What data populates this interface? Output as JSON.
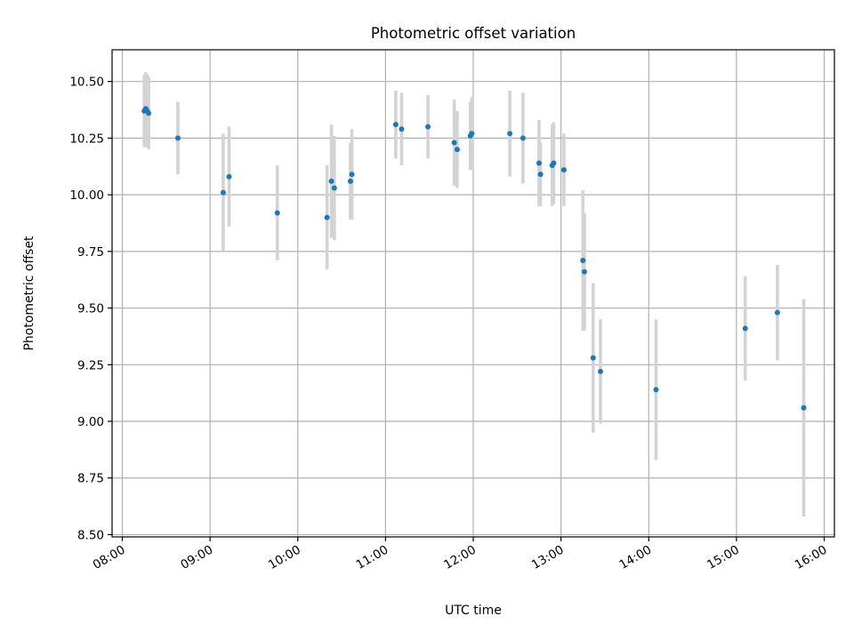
{
  "chart_data": {
    "type": "scatter",
    "title": "Photometric offset variation",
    "xlabel": "UTC time",
    "ylabel": "Photometric offset",
    "xlim": [
      "07:53",
      "16:07"
    ],
    "ylim": [
      8.49,
      10.64
    ],
    "grid": true,
    "x_ticks": [
      "08:00",
      "09:00",
      "10:00",
      "11:00",
      "12:00",
      "13:00",
      "14:00",
      "15:00",
      "16:00"
    ],
    "y_ticks": [
      "8.50",
      "8.75",
      "9.00",
      "9.25",
      "9.50",
      "9.75",
      "10.00",
      "10.25",
      "10.50"
    ],
    "colors": {
      "points": "#1f77b4",
      "error_bars": "#d3d3d3",
      "grid": "#b0b0b0"
    },
    "series": [
      {
        "points": [
          {
            "x": "08:15",
            "y": 10.37,
            "err": 0.16
          },
          {
            "x": "08:16",
            "y": 10.38,
            "err": 0.16
          },
          {
            "x": "08:17",
            "y": 10.37,
            "err": 0.16
          },
          {
            "x": "08:18",
            "y": 10.36,
            "err": 0.16
          },
          {
            "x": "08:38",
            "y": 10.25,
            "err": 0.16
          },
          {
            "x": "09:09",
            "y": 10.01,
            "err": 0.26
          },
          {
            "x": "09:13",
            "y": 10.08,
            "err": 0.22
          },
          {
            "x": "09:46",
            "y": 9.92,
            "err": 0.21
          },
          {
            "x": "10:20",
            "y": 9.9,
            "err": 0.23
          },
          {
            "x": "10:23",
            "y": 10.06,
            "err": 0.25
          },
          {
            "x": "10:25",
            "y": 10.03,
            "err": 0.23
          },
          {
            "x": "10:36",
            "y": 10.06,
            "err": 0.17
          },
          {
            "x": "10:37",
            "y": 10.09,
            "err": 0.2
          },
          {
            "x": "11:07",
            "y": 10.31,
            "err": 0.15
          },
          {
            "x": "11:11",
            "y": 10.29,
            "err": 0.16
          },
          {
            "x": "11:29",
            "y": 10.3,
            "err": 0.14
          },
          {
            "x": "11:47",
            "y": 10.23,
            "err": 0.19
          },
          {
            "x": "11:49",
            "y": 10.2,
            "err": 0.17
          },
          {
            "x": "11:58",
            "y": 10.26,
            "err": 0.15
          },
          {
            "x": "11:59",
            "y": 10.27,
            "err": 0.16
          },
          {
            "x": "12:25",
            "y": 10.27,
            "err": 0.19
          },
          {
            "x": "12:34",
            "y": 10.25,
            "err": 0.2
          },
          {
            "x": "12:45",
            "y": 10.14,
            "err": 0.19
          },
          {
            "x": "12:46",
            "y": 10.09,
            "err": 0.14
          },
          {
            "x": "12:54",
            "y": 10.13,
            "err": 0.18
          },
          {
            "x": "12:55",
            "y": 10.14,
            "err": 0.18
          },
          {
            "x": "13:02",
            "y": 10.11,
            "err": 0.16
          },
          {
            "x": "13:15",
            "y": 9.71,
            "err": 0.31
          },
          {
            "x": "13:16",
            "y": 9.66,
            "err": 0.26
          },
          {
            "x": "13:22",
            "y": 9.28,
            "err": 0.33
          },
          {
            "x": "13:27",
            "y": 9.22,
            "err": 0.23
          },
          {
            "x": "14:05",
            "y": 9.14,
            "err": 0.31
          },
          {
            "x": "15:06",
            "y": 9.41,
            "err": 0.23
          },
          {
            "x": "15:28",
            "y": 9.48,
            "err": 0.21
          },
          {
            "x": "15:46",
            "y": 9.06,
            "err": 0.48
          }
        ]
      }
    ]
  }
}
